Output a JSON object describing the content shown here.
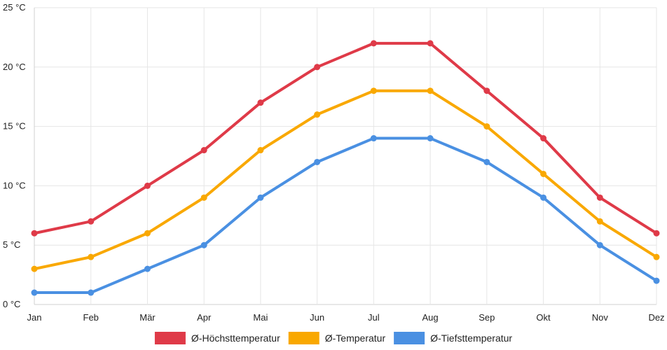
{
  "chart_data": {
    "type": "line",
    "categories": [
      "Jan",
      "Feb",
      "Mär",
      "Apr",
      "Mai",
      "Jun",
      "Jul",
      "Aug",
      "Sep",
      "Okt",
      "Nov",
      "Dez"
    ],
    "ylim": [
      0,
      25
    ],
    "yticks": [
      0,
      5,
      10,
      15,
      20,
      25
    ],
    "ytick_labels": [
      "0 °C",
      "5 °C",
      "10 °C",
      "15 °C",
      "20 °C",
      "25 °C"
    ],
    "grid": true,
    "legend_position": "bottom",
    "series": [
      {
        "name": "Ø-Höchsttemperatur",
        "color": "#df3a48",
        "values": [
          6,
          7,
          10,
          13,
          17,
          20,
          22,
          22,
          18,
          14,
          9,
          6
        ]
      },
      {
        "name": "Ø-Temperatur",
        "color": "#f9a800",
        "values": [
          3,
          4,
          6,
          9,
          13,
          16,
          18,
          18,
          15,
          11,
          7,
          4
        ]
      },
      {
        "name": "Ø-Tiefsttemperatur",
        "color": "#4a90e2",
        "values": [
          1,
          1,
          3,
          5,
          9,
          12,
          14,
          14,
          12,
          9,
          5,
          2
        ]
      }
    ]
  }
}
